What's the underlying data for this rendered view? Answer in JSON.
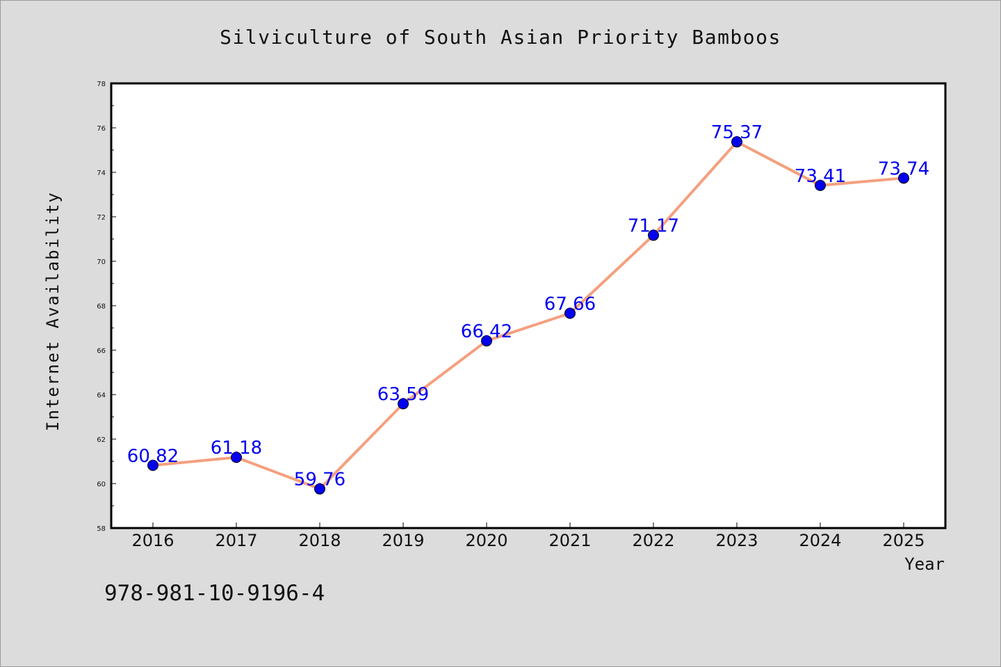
{
  "chart_data": {
    "type": "line",
    "title": "Silviculture of South Asian Priority Bamboos",
    "xlabel": "Year",
    "ylabel": "Internet Availability",
    "categories": [
      "2016",
      "2017",
      "2018",
      "2019",
      "2020",
      "2021",
      "2022",
      "2023",
      "2024",
      "2025"
    ],
    "series": [
      {
        "values": [
          60.82,
          61.18,
          59.76,
          63.59,
          66.42,
          67.66,
          71.17,
          75.37,
          73.41,
          73.74
        ],
        "labels": [
          "60.82",
          "61.18",
          "59.76",
          "63.59",
          "66.42",
          "67.66",
          "71.17",
          "75.37",
          "73.41",
          "73.74"
        ]
      }
    ],
    "ylim": [
      58,
      78
    ],
    "yticks": [
      "58",
      "60",
      "62",
      "64",
      "66",
      "68",
      "70",
      "72",
      "74",
      "76",
      "78"
    ],
    "grid": false,
    "legend": "none",
    "annotation": "978-981-10-9196-4",
    "colors": {
      "line": "#f4a07e",
      "marker": "#0000ee",
      "data_label": "#0000ee",
      "background": "#dcdcdc",
      "plot_background": "#ffffff"
    }
  }
}
